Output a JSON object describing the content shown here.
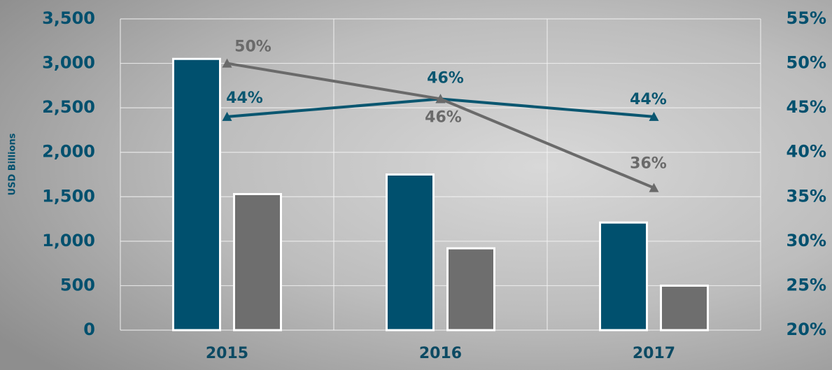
{
  "chart_data": {
    "type": "bar",
    "y_label": "USD Billions",
    "categories": [
      "2015",
      "2016",
      "2017"
    ],
    "series": [
      {
        "type": "bar",
        "color": "#00506e",
        "values": [
          3050,
          1750,
          1210
        ]
      },
      {
        "type": "bar",
        "color": "#6e6e6e",
        "values": [
          1530,
          920,
          500
        ]
      },
      {
        "type": "line",
        "axis": "y2",
        "color": "#0a5670",
        "values": [
          44,
          46,
          44
        ],
        "value_labels": [
          "44%",
          "46%",
          "44%"
        ]
      },
      {
        "type": "line",
        "axis": "y2",
        "color": "#6a6a6a",
        "values": [
          50,
          46,
          36
        ],
        "value_labels": [
          "50%",
          "46%",
          "36%"
        ]
      }
    ],
    "ylim": [
      0,
      3500
    ],
    "yticks": [
      0,
      500,
      {
        "value": 1000,
        "label": "1,000"
      },
      {
        "value": 1500,
        "label": "1,500"
      },
      {
        "value": 2000,
        "label": "2,000"
      },
      {
        "value": 2500,
        "label": "2,500"
      },
      {
        "value": 3000,
        "label": "3,000"
      },
      {
        "value": 3500,
        "label": "3,500"
      }
    ],
    "y2lim": [
      20,
      55
    ],
    "y2ticks": [
      {
        "value": 20,
        "label": "20%"
      },
      {
        "value": 25,
        "label": "25%"
      },
      {
        "value": 30,
        "label": "30%"
      },
      {
        "value": 35,
        "label": "35%"
      },
      {
        "value": 40,
        "label": "40%"
      },
      {
        "value": 45,
        "label": "45%"
      },
      {
        "value": 50,
        "label": "50%"
      },
      {
        "value": 55,
        "label": "55%"
      }
    ],
    "grid": true
  }
}
